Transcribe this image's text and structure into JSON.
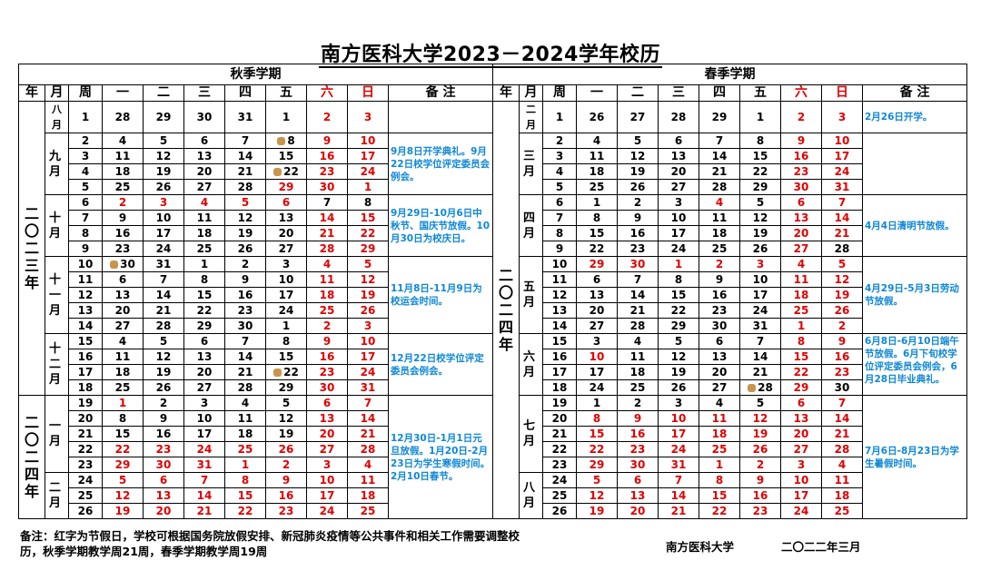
{
  "title": "南方医科大学2023－2024学年校历",
  "weekday_headers": [
    "一",
    "二",
    "三",
    "四",
    "五",
    "六",
    "日"
  ],
  "autumn": {
    "term_label": "秋季学期",
    "head": {
      "year": "年",
      "month": "月",
      "week": "周",
      "notes": "备  注"
    },
    "year_labels": [
      "二〇二三年",
      "二〇二四年"
    ],
    "months": [
      "八月",
      "九月",
      "十月",
      "十一月",
      "十二月",
      "一月",
      "二月"
    ],
    "rows": [
      {
        "week": "1",
        "days": [
          "28",
          "29",
          "30",
          "31",
          "1",
          "2",
          "3"
        ]
      },
      {
        "week": "2",
        "days": [
          "4",
          "5",
          "6",
          "7",
          "8",
          "9",
          "10"
        ]
      },
      {
        "week": "3",
        "days": [
          "11",
          "12",
          "13",
          "14",
          "15",
          "16",
          "17"
        ]
      },
      {
        "week": "4",
        "days": [
          "18",
          "19",
          "20",
          "21",
          "22",
          "23",
          "24"
        ]
      },
      {
        "week": "5",
        "days": [
          "25",
          "26",
          "27",
          "28",
          "29",
          "30",
          "1"
        ]
      },
      {
        "week": "6",
        "days": [
          "2",
          "3",
          "4",
          "5",
          "6",
          "7",
          "8"
        ]
      },
      {
        "week": "7",
        "days": [
          "9",
          "10",
          "11",
          "12",
          "13",
          "14",
          "15"
        ]
      },
      {
        "week": "8",
        "days": [
          "16",
          "17",
          "18",
          "19",
          "20",
          "21",
          "22"
        ]
      },
      {
        "week": "9",
        "days": [
          "23",
          "24",
          "25",
          "26",
          "27",
          "28",
          "29"
        ]
      },
      {
        "week": "10",
        "days": [
          "30",
          "31",
          "1",
          "2",
          "3",
          "4",
          "5"
        ]
      },
      {
        "week": "11",
        "days": [
          "6",
          "7",
          "8",
          "9",
          "10",
          "11",
          "12"
        ]
      },
      {
        "week": "12",
        "days": [
          "13",
          "14",
          "15",
          "16",
          "17",
          "18",
          "19"
        ]
      },
      {
        "week": "13",
        "days": [
          "20",
          "21",
          "22",
          "23",
          "24",
          "25",
          "26"
        ]
      },
      {
        "week": "14",
        "days": [
          "27",
          "28",
          "29",
          "30",
          "1",
          "2",
          "3"
        ]
      },
      {
        "week": "15",
        "days": [
          "4",
          "5",
          "6",
          "7",
          "8",
          "9",
          "10"
        ]
      },
      {
        "week": "16",
        "days": [
          "11",
          "12",
          "13",
          "14",
          "15",
          "16",
          "17"
        ]
      },
      {
        "week": "17",
        "days": [
          "18",
          "19",
          "20",
          "21",
          "22",
          "23",
          "24"
        ]
      },
      {
        "week": "18",
        "days": [
          "25",
          "26",
          "27",
          "28",
          "29",
          "30",
          "31"
        ]
      },
      {
        "week": "19",
        "days": [
          "1",
          "2",
          "3",
          "4",
          "5",
          "6",
          "7"
        ]
      },
      {
        "week": "20",
        "days": [
          "8",
          "9",
          "10",
          "11",
          "12",
          "13",
          "14"
        ]
      },
      {
        "week": "21",
        "days": [
          "15",
          "16",
          "17",
          "18",
          "19",
          "20",
          "21"
        ]
      },
      {
        "week": "22",
        "days": [
          "22",
          "23",
          "24",
          "25",
          "26",
          "27",
          "28"
        ]
      },
      {
        "week": "23",
        "days": [
          "29",
          "30",
          "31",
          "1",
          "2",
          "3",
          "4"
        ]
      },
      {
        "week": "24",
        "days": [
          "5",
          "6",
          "7",
          "8",
          "9",
          "10",
          "11"
        ]
      },
      {
        "week": "25",
        "days": [
          "12",
          "13",
          "14",
          "15",
          "16",
          "17",
          "18"
        ]
      },
      {
        "week": "26",
        "days": [
          "19",
          "20",
          "21",
          "22",
          "23",
          "24",
          "25"
        ]
      }
    ],
    "notes": [
      "9月8日开学典礼。9月22日校学位评定委员会例会。",
      "9月29日-10月6日中秋节、国庆节放假。10月30日为校庆日。",
      "11月8日-11月9日为校运会时间。",
      "12月22日校学位评定委员会例会。",
      "12月30日-1月1日元旦放假。1月20日-2月23日为学生寒假时间。2月10日春节。"
    ]
  },
  "spring": {
    "term_label": "春季学期",
    "head": {
      "year": "年",
      "month": "月",
      "week": "周",
      "notes": "备  注"
    },
    "year_label": "二〇二四年",
    "months": [
      "二月",
      "三月",
      "四月",
      "五月",
      "六月",
      "七月",
      "八月"
    ],
    "rows": [
      {
        "week": "1",
        "days": [
          "26",
          "27",
          "28",
          "29",
          "1",
          "2",
          "3"
        ]
      },
      {
        "week": "2",
        "days": [
          "4",
          "5",
          "6",
          "7",
          "8",
          "9",
          "10"
        ]
      },
      {
        "week": "3",
        "days": [
          "11",
          "12",
          "13",
          "14",
          "15",
          "16",
          "17"
        ]
      },
      {
        "week": "4",
        "days": [
          "18",
          "19",
          "20",
          "21",
          "22",
          "23",
          "24"
        ]
      },
      {
        "week": "5",
        "days": [
          "25",
          "26",
          "27",
          "28",
          "29",
          "30",
          "31"
        ]
      },
      {
        "week": "6",
        "days": [
          "1",
          "2",
          "3",
          "4",
          "5",
          "6",
          "7"
        ]
      },
      {
        "week": "7",
        "days": [
          "8",
          "9",
          "10",
          "11",
          "12",
          "13",
          "14"
        ]
      },
      {
        "week": "8",
        "days": [
          "15",
          "16",
          "17",
          "18",
          "19",
          "20",
          "21"
        ]
      },
      {
        "week": "9",
        "days": [
          "22",
          "23",
          "24",
          "25",
          "26",
          "27",
          "28"
        ]
      },
      {
        "week": "10",
        "days": [
          "29",
          "30",
          "1",
          "2",
          "3",
          "4",
          "5"
        ]
      },
      {
        "week": "11",
        "days": [
          "6",
          "7",
          "8",
          "9",
          "10",
          "11",
          "12"
        ]
      },
      {
        "week": "12",
        "days": [
          "13",
          "14",
          "15",
          "16",
          "17",
          "18",
          "19"
        ]
      },
      {
        "week": "13",
        "days": [
          "20",
          "21",
          "22",
          "23",
          "24",
          "25",
          "26"
        ]
      },
      {
        "week": "14",
        "days": [
          "27",
          "28",
          "29",
          "30",
          "31",
          "1",
          "2"
        ]
      },
      {
        "week": "15",
        "days": [
          "3",
          "4",
          "5",
          "6",
          "7",
          "8",
          "9"
        ]
      },
      {
        "week": "16",
        "days": [
          "10",
          "11",
          "12",
          "13",
          "14",
          "15",
          "16"
        ]
      },
      {
        "week": "17",
        "days": [
          "17",
          "18",
          "19",
          "20",
          "21",
          "22",
          "23"
        ]
      },
      {
        "week": "18",
        "days": [
          "24",
          "25",
          "26",
          "27",
          "28",
          "29",
          "30"
        ]
      },
      {
        "week": "19",
        "days": [
          "1",
          "2",
          "3",
          "4",
          "5",
          "6",
          "7"
        ]
      },
      {
        "week": "20",
        "days": [
          "8",
          "9",
          "10",
          "11",
          "12",
          "13",
          "14"
        ]
      },
      {
        "week": "21",
        "days": [
          "15",
          "16",
          "17",
          "18",
          "19",
          "20",
          "21"
        ]
      },
      {
        "week": "22",
        "days": [
          "22",
          "23",
          "24",
          "25",
          "26",
          "27",
          "28"
        ]
      },
      {
        "week": "23",
        "days": [
          "29",
          "30",
          "31",
          "1",
          "2",
          "3",
          "4"
        ]
      },
      {
        "week": "24",
        "days": [
          "5",
          "6",
          "7",
          "8",
          "9",
          "10",
          "11"
        ]
      },
      {
        "week": "25",
        "days": [
          "12",
          "13",
          "14",
          "15",
          "16",
          "17",
          "18"
        ]
      },
      {
        "week": "26",
        "days": [
          "19",
          "20",
          "21",
          "22",
          "23",
          "24",
          "25"
        ]
      }
    ],
    "notes": [
      "2月26日开学。",
      "4月4日清明节放假。",
      "4月29日-5月3日劳动节放假。",
      "6月8日-6月10日端午节放假。6月下旬校学位评定委员会例会，6月28日毕业典礼。",
      "7月6日-8月23日为学生暑假时间。"
    ]
  },
  "footnote": "备注：红字为节假日，学校可根据国务院放假安排、新冠肺炎疫情等公共事件和相关工作需要调整校历，秋季学期教学周21周，春季学期教学周19周",
  "signature": "南方医科大学",
  "issue_date": "二〇二二年三月",
  "colors": {
    "holiday_red": "#e00000",
    "note_blue": "#0f87d6",
    "stamp": "#c8954d"
  },
  "stamp_icon": "school-seal-icon"
}
